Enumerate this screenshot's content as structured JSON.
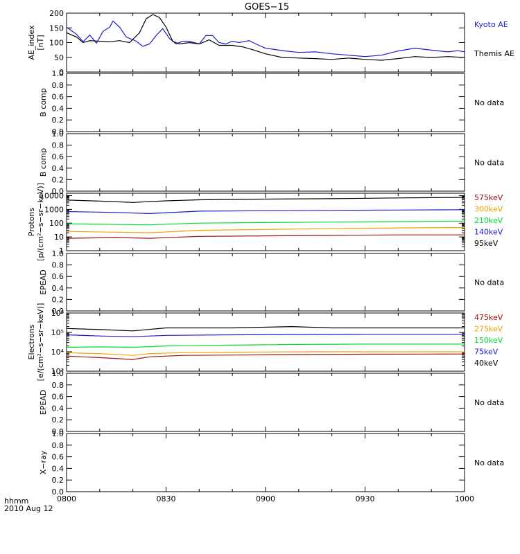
{
  "title": "GOES−15",
  "footer": {
    "time_label": "hhmm",
    "date_label": "2010 Aug 12"
  },
  "x_ticks": [
    "0800",
    "0830",
    "0900",
    "0930",
    "1000"
  ],
  "no_data_label": "No data",
  "colors": {
    "kyoto": "#1a1acc",
    "themis": "#000000",
    "red": "#a01010",
    "orange": "#f0a000",
    "green": "#00dd33",
    "blue": "#1a1acc",
    "black": "#000000"
  },
  "chart_data": [
    {
      "id": "ae",
      "type": "line",
      "ylabel_lines": [
        "AE_index",
        "[nT]"
      ],
      "ylim": [
        0,
        210
      ],
      "yticks": [
        "0",
        "50",
        "100",
        "150",
        "200"
      ],
      "series": [
        {
          "name": "Kyoto AE",
          "color": "blue",
          "x": [
            0,
            3,
            5,
            7,
            9,
            11,
            13,
            14,
            16,
            18,
            21,
            23,
            25,
            27,
            29,
            31,
            33,
            35,
            37,
            40,
            42,
            44,
            46,
            48,
            50,
            52,
            55,
            58,
            60,
            63,
            66,
            70,
            75,
            80,
            85,
            90,
            95,
            100,
            105,
            110,
            115,
            118,
            120
          ],
          "y": [
            160,
            135,
            108,
            132,
            103,
            145,
            160,
            182,
            160,
            125,
            110,
            92,
            100,
            130,
            155,
            120,
            100,
            110,
            110,
            100,
            130,
            130,
            105,
            100,
            110,
            105,
            112,
            95,
            85,
            80,
            75,
            70,
            72,
            65,
            60,
            55,
            60,
            75,
            85,
            78,
            72,
            76,
            72
          ]
        },
        {
          "name": "Themis AE",
          "color": "themis",
          "x": [
            0,
            3,
            5,
            7,
            10,
            13,
            16,
            19,
            22,
            24,
            26,
            28,
            30,
            32,
            34,
            37,
            40,
            43,
            46,
            50,
            53,
            56,
            60,
            65,
            70,
            75,
            80,
            85,
            90,
            95,
            100,
            105,
            110,
            115,
            120
          ],
          "y": [
            140,
            125,
            105,
            112,
            110,
            108,
            112,
            105,
            140,
            190,
            205,
            195,
            160,
            110,
            100,
            105,
            100,
            115,
            95,
            95,
            90,
            80,
            65,
            52,
            50,
            48,
            45,
            50,
            45,
            42,
            48,
            55,
            52,
            55,
            52
          ]
        }
      ]
    },
    {
      "id": "b1",
      "type": "line",
      "ylabel_lines": [
        "B comp"
      ],
      "ylim": [
        0,
        1
      ],
      "yticks": [
        "0.0",
        "0.2",
        "0.4",
        "0.6",
        "0.8",
        "1.0"
      ],
      "series": [],
      "note": "No data"
    },
    {
      "id": "b2",
      "type": "line",
      "ylabel_lines": [
        "B comp"
      ],
      "ylim": [
        0,
        1
      ],
      "yticks": [
        "0.0",
        "0.2",
        "0.4",
        "0.6",
        "0.8",
        "1.0"
      ],
      "series": [],
      "note": "No data"
    },
    {
      "id": "protons",
      "type": "line",
      "log_scale": true,
      "ylabel_lines": [
        "Protons",
        "[p/(cm²−s−sr−keV)]"
      ],
      "ylim": [
        1,
        15000
      ],
      "yticks": [
        "1",
        "10",
        "100",
        "1000",
        "10000"
      ],
      "series": [
        {
          "name": "575keV",
          "color": "red",
          "x": [
            0,
            15,
            25,
            40,
            60,
            80,
            100,
            120
          ],
          "y": [
            8,
            9,
            8,
            11,
            12,
            13,
            14,
            14
          ]
        },
        {
          "name": "300keV",
          "color": "orange",
          "x": [
            0,
            15,
            25,
            40,
            60,
            80,
            100,
            120
          ],
          "y": [
            25,
            22,
            20,
            30,
            35,
            40,
            45,
            48
          ]
        },
        {
          "name": "210keV",
          "color": "green",
          "x": [
            0,
            15,
            25,
            40,
            60,
            80,
            100,
            120
          ],
          "y": [
            90,
            80,
            75,
            100,
            110,
            120,
            130,
            140
          ]
        },
        {
          "name": "140keV",
          "color": "blue",
          "x": [
            0,
            15,
            25,
            40,
            60,
            80,
            100,
            120
          ],
          "y": [
            700,
            600,
            500,
            750,
            800,
            850,
            900,
            950
          ]
        },
        {
          "name": "95keV",
          "color": "black",
          "x": [
            0,
            10,
            20,
            30,
            40,
            60,
            80,
            100,
            120
          ],
          "y": [
            4800,
            4000,
            3200,
            4200,
            5000,
            5600,
            6000,
            6800,
            7500
          ]
        }
      ]
    },
    {
      "id": "epead1",
      "type": "line",
      "ylabel_lines": [
        "EPEAD"
      ],
      "ylim": [
        0,
        1
      ],
      "yticks": [
        "0.0",
        "0.2",
        "0.4",
        "0.6",
        "0.8",
        "1.0"
      ],
      "series": [],
      "note": "No data"
    },
    {
      "id": "electrons",
      "type": "line",
      "log_scale": true,
      "ylabel_lines": [
        "Electrons",
        "[e/(cm²−s−sr−keV)]"
      ],
      "ylim": [
        1000,
        1000000
      ],
      "yticks": [
        "10³",
        "10⁴",
        "10⁵",
        "10⁶"
      ],
      "series": [
        {
          "name": "475keV",
          "color": "red",
          "x": [
            0,
            10,
            20,
            25,
            35,
            50,
            70,
            90,
            110,
            120
          ],
          "y": [
            6000,
            5000,
            4000,
            5500,
            6500,
            6800,
            7200,
            7500,
            7600,
            7700
          ]
        },
        {
          "name": "275keV",
          "color": "orange",
          "x": [
            0,
            10,
            20,
            25,
            35,
            50,
            70,
            90,
            110,
            120
          ],
          "y": [
            9000,
            8000,
            6500,
            8000,
            9000,
            9500,
            10000,
            10000,
            10000,
            10000
          ]
        },
        {
          "name": "150keV",
          "color": "green",
          "x": [
            0,
            10,
            20,
            30,
            50,
            70,
            90,
            110,
            120
          ],
          "y": [
            17000,
            18000,
            17000,
            20000,
            22000,
            24000,
            25000,
            25000,
            25000
          ]
        },
        {
          "name": "75keV",
          "color": "blue",
          "x": [
            0,
            10,
            20,
            30,
            50,
            70,
            90,
            110,
            120
          ],
          "y": [
            75000,
            65000,
            60000,
            70000,
            75000,
            78000,
            80000,
            80000,
            80000
          ]
        },
        {
          "name": "40keV",
          "color": "black",
          "x": [
            0,
            10,
            20,
            30,
            50,
            68,
            80,
            100,
            120
          ],
          "y": [
            160000,
            140000,
            120000,
            170000,
            170000,
            200000,
            170000,
            170000,
            170000
          ]
        }
      ]
    },
    {
      "id": "epead2",
      "type": "line",
      "ylabel_lines": [
        "EPEAD"
      ],
      "ylim": [
        0,
        1
      ],
      "yticks": [
        "0.0",
        "0.2",
        "0.4",
        "0.6",
        "0.8",
        "1.0"
      ],
      "series": [],
      "note": "No data"
    },
    {
      "id": "xray",
      "type": "line",
      "ylabel_lines": [
        "X−ray"
      ],
      "ylim": [
        0,
        1
      ],
      "yticks": [
        "0.0",
        "0.2",
        "0.4",
        "0.6",
        "0.8",
        "1.0"
      ],
      "series": [],
      "note": "No data"
    }
  ]
}
